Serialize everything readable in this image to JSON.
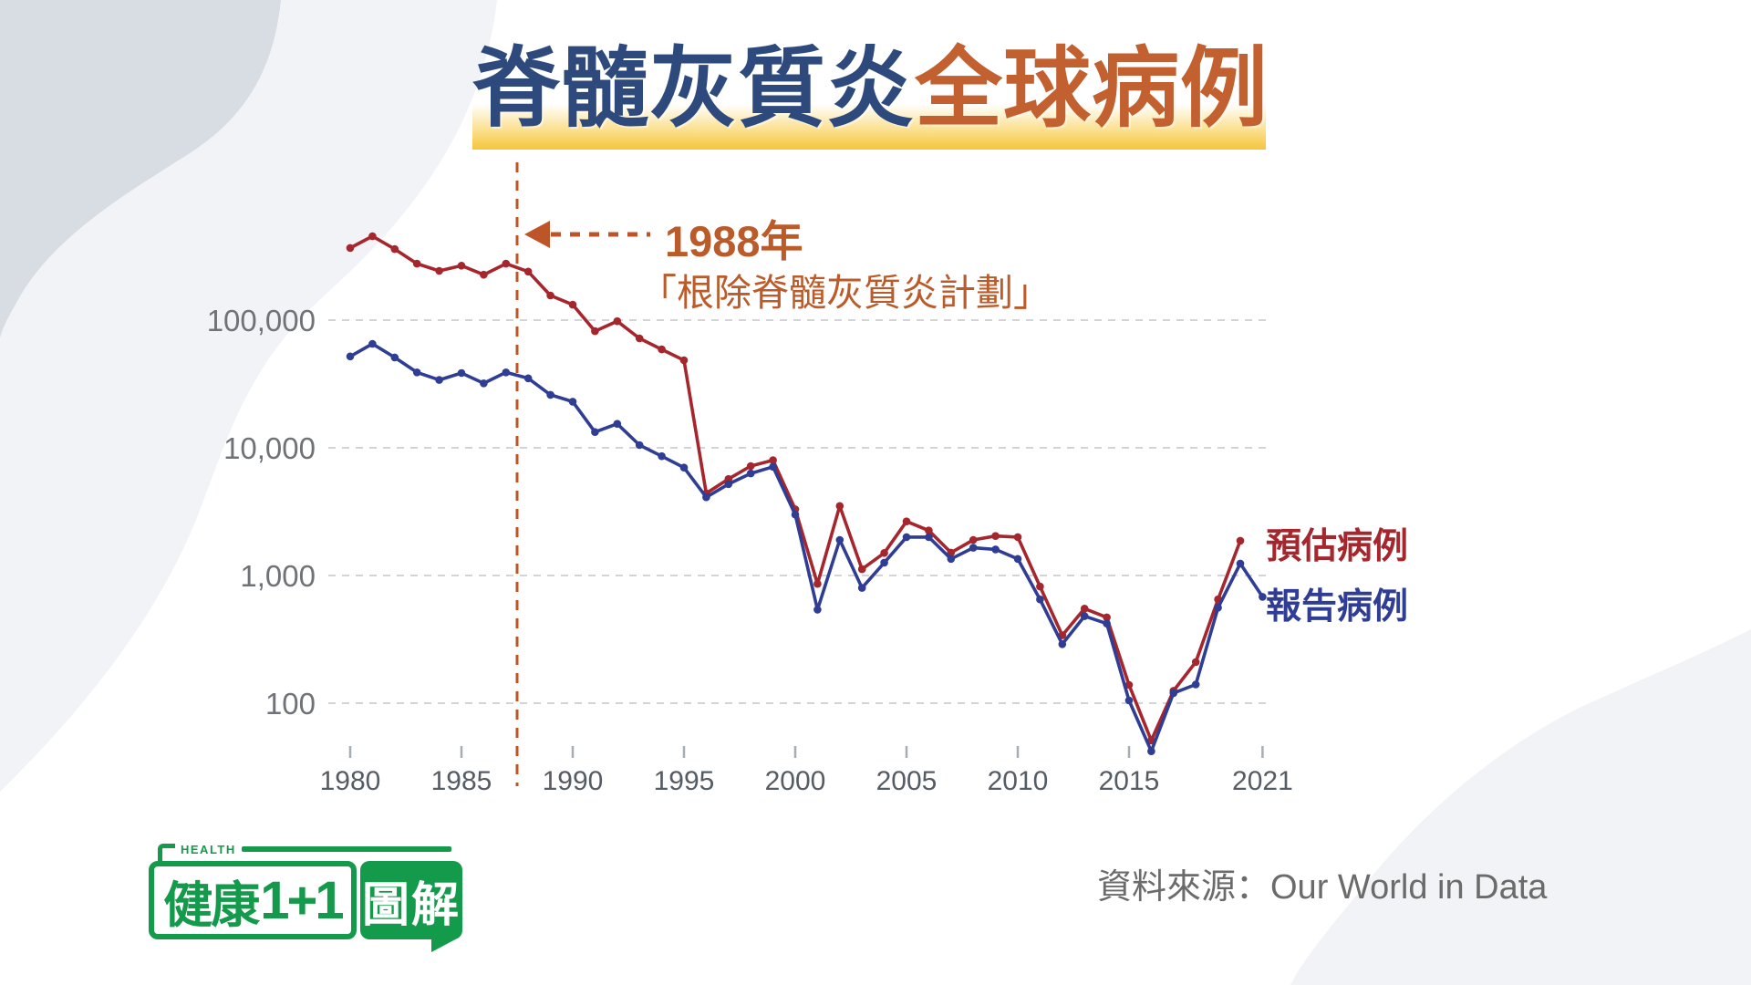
{
  "page": {
    "background": "#FFFFFF"
  },
  "title": {
    "part_blue": "脊髓灰質炎",
    "part_orange": "全球病例",
    "blue_color": "#2E4A7D",
    "orange_color": "#C2602F",
    "band_color": "#F5C53B"
  },
  "annotation": {
    "line1": "1988年",
    "line2": "「根除脊髓灰質炎計劃」",
    "color": "#BC5B2A"
  },
  "legend": {
    "estimated_label": "預估病例",
    "reported_label": "報告病例"
  },
  "source": {
    "label": "資料來源：Our World in Data"
  },
  "logo": {
    "health": "HEALTH",
    "left_text": "健康",
    "plus_text": "1+1",
    "right_text": "圖解",
    "green": "#139A4B"
  },
  "chart_data": {
    "type": "line",
    "yscale": "log",
    "ylim": [
      30,
      500000
    ],
    "grid": "horizontal-dashed",
    "legend_position": "right",
    "x": [
      1980,
      1981,
      1982,
      1983,
      1984,
      1985,
      1986,
      1987,
      1988,
      1989,
      1990,
      1991,
      1992,
      1993,
      1994,
      1995,
      1996,
      1997,
      1998,
      1999,
      2000,
      2001,
      2002,
      2003,
      2004,
      2005,
      2006,
      2007,
      2008,
      2009,
      2010,
      2011,
      2012,
      2013,
      2014,
      2015,
      2016,
      2017,
      2018,
      2019,
      2020,
      2021
    ],
    "series": [
      {
        "name": "預估病例",
        "color": "#A5262C",
        "values": [
          367000,
          454000,
          360000,
          277000,
          243000,
          267000,
          227000,
          277000,
          240000,
          156000,
          132000,
          82000,
          98000,
          72000,
          59000,
          48500,
          4400,
          5700,
          7200,
          8000,
          3300,
          860,
          3500,
          1120,
          1500,
          2650,
          2250,
          1510,
          1900,
          2040,
          2000,
          820,
          340,
          550,
          470,
          139,
          51,
          125,
          210,
          650,
          1870,
          null
        ]
      },
      {
        "name": "報告病例",
        "color": "#2F3D94",
        "values": [
          52000,
          65200,
          51000,
          39000,
          34000,
          38500,
          32000,
          39000,
          35000,
          26000,
          23000,
          13300,
          15400,
          10500,
          8600,
          7000,
          4100,
          5200,
          6300,
          7100,
          3000,
          540,
          1900,
          800,
          1260,
          2000,
          2000,
          1350,
          1650,
          1600,
          1350,
          650,
          290,
          480,
          420,
          105,
          42,
          120,
          140,
          560,
          1240,
          680
        ]
      }
    ],
    "yticks": [
      {
        "value": 100000,
        "label": "100,000"
      },
      {
        "value": 10000,
        "label": "10,000"
      },
      {
        "value": 1000,
        "label": "1,000"
      },
      {
        "value": 100,
        "label": "100"
      }
    ],
    "xticks": [
      {
        "year": 1980,
        "label": "1980"
      },
      {
        "year": 1985,
        "label": "1985"
      },
      {
        "year": 1990,
        "label": "1990"
      },
      {
        "year": 1995,
        "label": "1995"
      },
      {
        "year": 2000,
        "label": "2000"
      },
      {
        "year": 2005,
        "label": "2005"
      },
      {
        "year": 2010,
        "label": "2010"
      },
      {
        "year": 2015,
        "label": "2015"
      },
      {
        "year": 2021,
        "label": "2021"
      }
    ],
    "event_line": {
      "year": 1988,
      "label": "1988年"
    }
  }
}
